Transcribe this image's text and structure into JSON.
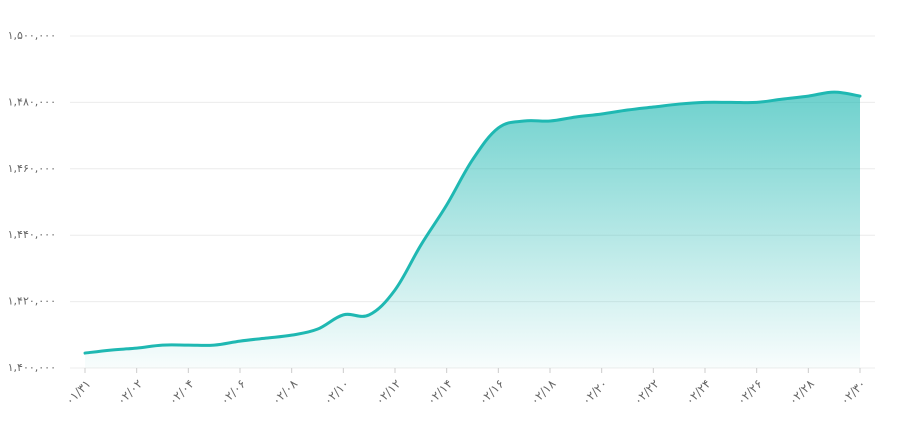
{
  "chart_data": {
    "type": "area",
    "color": "#1fb8b2",
    "grid": true,
    "x": [
      "۰۱/۳۱",
      null,
      "۰۲/۰۲",
      null,
      "۰۲/۰۴",
      null,
      "۰۲/۰۶",
      null,
      "۰۲/۰۸",
      null,
      "۰۲/۱۰",
      null,
      "۰۲/۱۲",
      null,
      "۰۲/۱۴",
      null,
      "۰۲/۱۶",
      null,
      "۰۲/۱۸",
      null,
      "۰۲/۲۰",
      null,
      "۰۲/۲۲",
      null,
      "۰۲/۲۴",
      null,
      "۰۲/۲۶",
      null,
      "۰۲/۲۸",
      null,
      "۰۲/۳۰"
    ],
    "values": [
      1404500,
      1405400,
      1406000,
      1406900,
      1406900,
      1406900,
      1408100,
      1409000,
      1409900,
      1411700,
      1416000,
      1416000,
      1423500,
      1437000,
      1449100,
      1462700,
      1472300,
      1474400,
      1474400,
      1475600,
      1476500,
      1477700,
      1478600,
      1479500,
      1480000,
      1480000,
      1480000,
      1481000,
      1481900,
      1483100,
      1481900
    ],
    "ylim": [
      1400000,
      1500000
    ],
    "yticks": [
      {
        "value": 1400000,
        "label": "۱,۴۰۰,۰۰۰"
      },
      {
        "value": 1420000,
        "label": "۱,۴۲۰,۰۰۰"
      },
      {
        "value": 1440000,
        "label": "۱,۴۴۰,۰۰۰"
      },
      {
        "value": 1460000,
        "label": "۱,۴۶۰,۰۰۰"
      },
      {
        "value": 1480000,
        "label": "۱,۴۸۰,۰۰۰"
      },
      {
        "value": 1500000,
        "label": "۱,۵۰۰,۰۰۰"
      }
    ]
  }
}
